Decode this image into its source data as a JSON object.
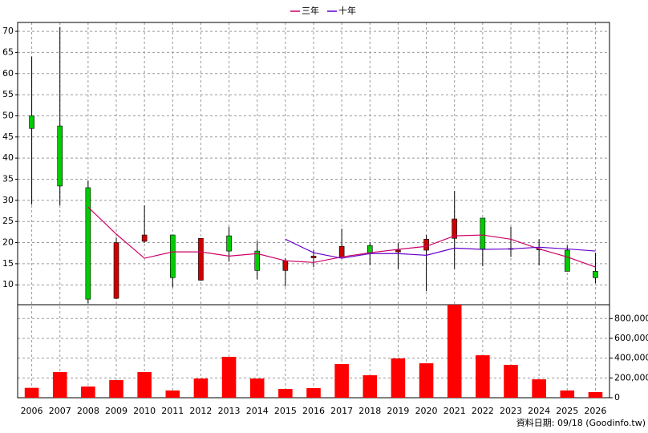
{
  "chart_data": {
    "type": "candlestick",
    "categories": [
      "2006",
      "2007",
      "2008",
      "2009",
      "2010",
      "2011",
      "2012",
      "2013",
      "2014",
      "2015",
      "2016",
      "2017",
      "2018",
      "2019",
      "2020",
      "2021",
      "2022",
      "2023",
      "2024",
      "2025",
      "2026"
    ],
    "open": [
      50,
      47.6,
      33,
      6.8,
      20.3,
      21.8,
      11.1,
      21.6,
      18,
      13.4,
      16.4,
      16.6,
      19.3,
      17.8,
      18.2,
      21,
      25.8,
      18.6,
      18.5,
      18.2,
      13.2
    ],
    "high": [
      64,
      71,
      34.7,
      21.2,
      28.8,
      21.8,
      21,
      23.7,
      20.4,
      16.3,
      18.2,
      23.3,
      20,
      19.9,
      21.8,
      32.2,
      25.8,
      23.7,
      20.8,
      19.3,
      17.6
    ],
    "low": [
      29,
      28.8,
      5.6,
      6.6,
      20,
      9.4,
      11,
      15.5,
      11.3,
      9.6,
      14.2,
      16.3,
      14.7,
      13.8,
      8.5,
      13.8,
      14.4,
      16.6,
      14.6,
      13.2,
      10.4
    ],
    "close": [
      47,
      33.4,
      6.6,
      20,
      21.8,
      11.7,
      21,
      18,
      13.4,
      15.7,
      16.8,
      19.1,
      17.4,
      18.2,
      20.8,
      25.6,
      18.5,
      18.4,
      18.5,
      13.2,
      11.7
    ],
    "up_color": "#cc0000",
    "down_color": "#00cc00",
    "series": [
      {
        "name": "三年",
        "color": "#cc0066",
        "values": [
          null,
          null,
          28.4,
          22,
          16.3,
          17.8,
          17.8,
          16.8,
          17.4,
          15.7,
          15.3,
          16.6,
          17.6,
          18.4,
          19.1,
          21.6,
          21.8,
          20.8,
          18.5,
          16.6,
          14.2
        ]
      },
      {
        "name": "十年",
        "color": "#6600cc",
        "values": [
          null,
          null,
          null,
          null,
          null,
          null,
          null,
          null,
          null,
          20.8,
          17.6,
          16.3,
          17.4,
          17.4,
          17,
          18.7,
          18.4,
          18.5,
          18.9,
          18.5,
          18
        ]
      }
    ],
    "ylim": [
      5.3,
      72.1
    ],
    "yticks": [
      10,
      15,
      20,
      25,
      30,
      35,
      40,
      45,
      50,
      55,
      60,
      65,
      70
    ],
    "volume": {
      "color": "#ff0000",
      "values": [
        100000,
        259000,
        113000,
        178000,
        259000,
        73000,
        194000,
        413000,
        194000,
        89000,
        97000,
        340000,
        227000,
        397000,
        348000,
        940000,
        429000,
        332000,
        186000,
        73000,
        57000
      ],
      "y2lim": [
        0,
        940000
      ],
      "y2ticks": [
        0,
        {
          "value": 200000,
          "label": "200,000"
        },
        {
          "value": 400000,
          "label": "400,000"
        },
        {
          "value": 600000,
          "label": "600,000"
        },
        {
          "value": 800000,
          "label": "800,000"
        }
      ]
    },
    "grid": true,
    "legend": "top",
    "footer": "資料日期: 09/18 (Goodinfo.tw)"
  }
}
